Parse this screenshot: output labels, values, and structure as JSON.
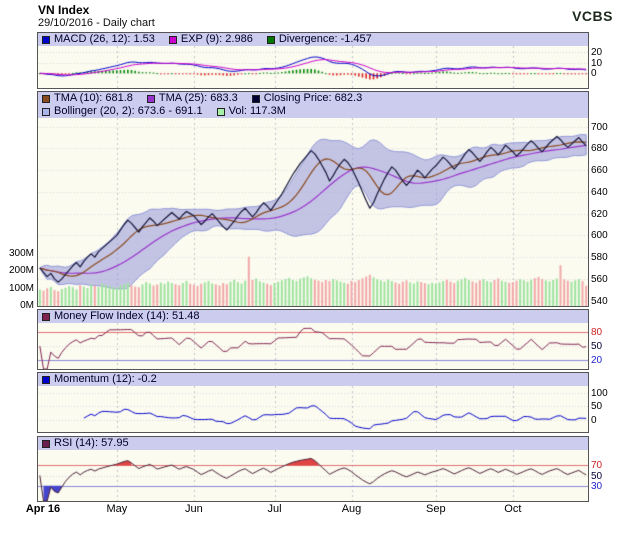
{
  "header": {
    "title": "VN Index",
    "subtitle": "29/10/2016 - Daily chart",
    "logo": "VCBS"
  },
  "chart_data": {
    "type": "line",
    "title": "VN Index",
    "subtitle": "29/10/2016 - Daily chart",
    "x_axis": {
      "labels": [
        "Apr 16",
        "May",
        "Jun",
        "Jul",
        "Aug",
        "Sep",
        "Oct"
      ],
      "month_start_indices": [
        0,
        21,
        42,
        64,
        85,
        108,
        129
      ],
      "points": 150
    },
    "panels": {
      "macd": {
        "legend": [
          {
            "text": "MACD (26, 12): 1.53",
            "color": "#0000cc"
          },
          {
            "text": "EXP (9): 2.986",
            "color": "#cc00cc"
          },
          {
            "text": "Divergence: -1.457",
            "color": "#007700"
          }
        ],
        "yticks": [
          20,
          10,
          0
        ],
        "ylim": [
          -14,
          26
        ]
      },
      "price": {
        "legend": [
          {
            "text": "TMA (10): 681.8",
            "color": "#8a4a20"
          },
          {
            "text": "TMA (25): 683.3",
            "color": "#9933cc"
          },
          {
            "text": "Closing Price: 682.3",
            "color": "#000033"
          },
          {
            "text": "Bollinger (20, 2): 673.6 - 691.1",
            "color": "#aab4ec"
          },
          {
            "text": "Vol: 117.3M",
            "color": "#a8f0a8"
          }
        ],
        "yticks": [
          700,
          680,
          660,
          640,
          620,
          600,
          580,
          560,
          540
        ],
        "ylim": [
          535,
          708
        ],
        "vol_ticks": [
          300,
          200,
          100,
          0
        ],
        "vol_axis_max": 300
      },
      "mfi": {
        "legend": [
          {
            "text": "Money Flow Index (14): 51.48",
            "color": "#80224e"
          }
        ],
        "yticks": [
          80,
          50,
          20
        ],
        "ytick_colors": [
          "#cc2222",
          "#000033",
          "#2222cc"
        ],
        "ylim": [
          0,
          100
        ],
        "overbought": 80,
        "oversold": 20
      },
      "momentum": {
        "legend": [
          {
            "text": "Momentum (12): -0.2",
            "color": "#0000cc"
          }
        ],
        "yticks": [
          100,
          50,
          0
        ],
        "ylim": [
          -45,
          125
        ]
      },
      "rsi": {
        "legend": [
          {
            "text": "RSI (14): 57.95",
            "color": "#6b1f4e"
          }
        ],
        "yticks": [
          70,
          50,
          30
        ],
        "ytick_colors": [
          "#cc2222",
          "#000033",
          "#2222cc"
        ],
        "ylim": [
          0,
          100
        ],
        "overbought": 70,
        "oversold": 30
      }
    },
    "close": [
      570,
      566,
      562,
      565,
      560,
      557,
      560,
      564,
      568,
      572,
      575,
      571,
      576,
      580,
      583,
      580,
      585,
      588,
      591,
      594,
      597,
      600,
      605,
      610,
      614,
      611,
      607,
      603,
      608,
      612,
      616,
      613,
      609,
      612,
      615,
      618,
      621,
      618,
      615,
      619,
      622,
      620,
      618,
      614,
      610,
      613,
      617,
      620,
      616,
      612,
      608,
      605,
      609,
      613,
      618,
      622,
      625,
      621,
      617,
      621,
      626,
      630,
      627,
      623,
      628,
      633,
      638,
      644,
      650,
      656,
      661,
      666,
      670,
      674,
      678,
      675,
      670,
      664,
      658,
      650,
      655,
      661,
      666,
      670,
      667,
      662,
      655,
      648,
      640,
      632,
      625,
      630,
      638,
      645,
      652,
      658,
      663,
      660,
      655,
      650,
      646,
      650,
      655,
      660,
      657,
      653,
      657,
      661,
      664,
      668,
      672,
      669,
      665,
      661,
      665,
      670,
      675,
      679,
      676,
      672,
      668,
      672,
      677,
      681,
      678,
      674,
      678,
      683,
      680,
      677,
      673,
      676,
      680,
      684,
      687,
      684,
      680,
      677,
      681,
      685,
      688,
      691,
      688,
      684,
      681,
      684,
      687,
      690,
      686,
      682.3
    ],
    "volume_m": [
      95,
      88,
      102,
      110,
      92,
      85,
      98,
      105,
      115,
      108,
      96,
      120,
      112,
      104,
      125,
      118,
      109,
      130,
      122,
      115,
      110,
      105,
      118,
      126,
      134,
      120,
      112,
      108,
      125,
      138,
      130,
      118,
      124,
      135,
      128,
      140,
      132,
      126,
      119,
      133,
      145,
      128,
      122,
      115,
      128,
      136,
      144,
      130,
      125,
      118,
      132,
      126,
      140,
      152,
      138,
      130,
      146,
      285,
      150,
      158,
      142,
      135,
      128,
      120,
      132,
      140,
      148,
      156,
      162,
      150,
      144,
      158,
      165,
      172,
      160,
      152,
      146,
      138,
      150,
      144,
      156,
      148,
      140,
      134,
      128,
      145,
      138,
      150,
      160,
      170,
      180,
      165,
      155,
      148,
      140,
      152,
      144,
      136,
      128,
      140,
      148,
      136,
      130,
      142,
      138,
      132,
      126,
      134,
      128,
      136,
      144,
      152,
      140,
      132,
      146,
      154,
      162,
      150,
      142,
      134,
      148,
      156,
      144,
      138,
      150,
      158,
      146,
      140,
      134,
      138,
      146,
      154,
      148,
      140,
      152,
      160,
      168,
      156,
      148,
      142,
      150,
      158,
      235,
      154,
      146,
      140,
      148,
      156,
      144,
      117
    ],
    "colors": {
      "macd": "#0000cc",
      "exp": "#cc00cc",
      "divergence_pos": "#008800",
      "divergence_neg": "#dd2222",
      "close": "#15153a",
      "tma10": "#8a4a20",
      "tma25": "#9933cc",
      "bollinger_fill": "rgba(150,152,216,0.55)",
      "bollinger_edge": "#9096d8",
      "vol_up": "#9fe39f",
      "vol_down": "#f2a8a8",
      "mfi": "#80224e",
      "momentum": "#0000cc",
      "rsi": "#4a1f35",
      "rsi_over": "#e04444",
      "rsi_under": "#4444cc",
      "overbought_line": "#e07070",
      "oversold_line": "#8888d8",
      "legend_bg": "#ccccee",
      "panel_bg": "#fbfbf0"
    }
  }
}
